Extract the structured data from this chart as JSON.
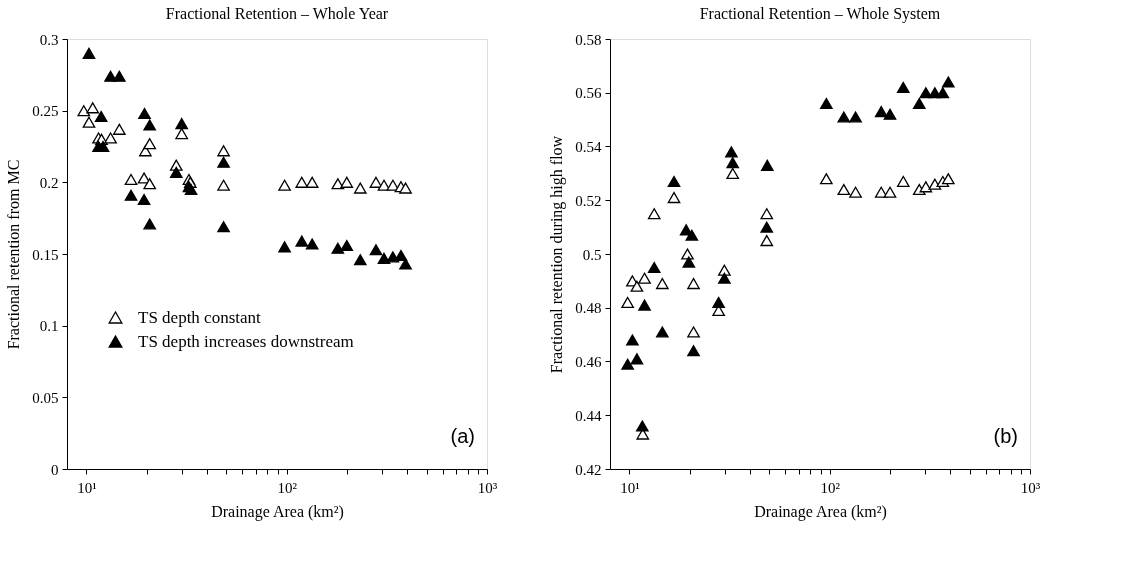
{
  "chart_data": [
    {
      "type": "scatter",
      "title": "Fractional Retention – Whole Year",
      "xlabel": "Drainage Area (km²)",
      "ylabel": "Fractional retention from MC",
      "log": "x",
      "grid": false,
      "marker": "triangle",
      "legend": "bottom left",
      "annotations": [
        "(a)"
      ],
      "xlim": [
        8,
        1000
      ],
      "ylim": [
        0,
        0.3
      ],
      "xticks": [
        {
          "value": 10,
          "label": "10¹"
        },
        {
          "value": 20,
          "label": null
        },
        {
          "value": 30,
          "label": null
        },
        {
          "value": 40,
          "label": null
        },
        {
          "value": 50,
          "label": null
        },
        {
          "value": 60,
          "label": null
        },
        {
          "value": 70,
          "label": null
        },
        {
          "value": 80,
          "label": null
        },
        {
          "value": 90,
          "label": null
        },
        {
          "value": 100,
          "label": "10²"
        },
        {
          "value": 200,
          "label": null
        },
        {
          "value": 300,
          "label": null
        },
        {
          "value": 400,
          "label": null
        },
        {
          "value": 500,
          "label": null
        },
        {
          "value": 600,
          "label": null
        },
        {
          "value": 700,
          "label": null
        },
        {
          "value": 800,
          "label": null
        },
        {
          "value": 900,
          "label": null
        },
        {
          "value": 1000,
          "label": "10³"
        }
      ],
      "yticks": [
        0,
        0.05,
        0.1,
        0.15,
        0.2,
        0.25,
        0.3
      ],
      "series": [
        {
          "name": "TS depth constant",
          "color": "#ffffff",
          "x": [
            9.7,
            10.75,
            10.3,
            11.5,
            11.9,
            13.2,
            14.6,
            16.7,
            19.4,
            19.7,
            20.7,
            20.7,
            28.1,
            29.9,
            32.5,
            33.0,
            48.4,
            48.4,
            97.6,
            118.9,
            134,
            180,
            199.5,
            233,
            279,
            306,
            339,
            372,
            392
          ],
          "values": [
            0.25,
            0.252,
            0.242,
            0.231,
            0.23,
            0.231,
            0.237,
            0.202,
            0.203,
            0.222,
            0.227,
            0.199,
            0.212,
            0.234,
            0.202,
            0.2,
            0.222,
            0.198,
            0.198,
            0.2,
            0.2,
            0.199,
            0.2,
            0.196,
            0.2,
            0.198,
            0.198,
            0.197,
            0.196
          ]
        },
        {
          "name": "TS depth increases downstream",
          "color": "#000000",
          "x": [
            10.3,
            13.2,
            14.6,
            11.85,
            11.5,
            12.1,
            16.7,
            19.5,
            20.7,
            19.4,
            20.7,
            29.9,
            28.1,
            32.5,
            33.3,
            48.4,
            48.4,
            97.6,
            118.9,
            134,
            180,
            199.5,
            233,
            279,
            306,
            339,
            372,
            392
          ],
          "values": [
            0.29,
            0.274,
            0.274,
            0.246,
            0.225,
            0.225,
            0.191,
            0.248,
            0.24,
            0.188,
            0.171,
            0.241,
            0.207,
            0.197,
            0.195,
            0.214,
            0.169,
            0.155,
            0.159,
            0.157,
            0.154,
            0.156,
            0.146,
            0.153,
            0.147,
            0.148,
            0.149,
            0.143
          ]
        }
      ]
    },
    {
      "type": "scatter",
      "title": "Fractional Retention – Whole System",
      "xlabel": "Drainage Area (km²)",
      "ylabel": "Fractional retention during high flow",
      "log": "x",
      "grid": false,
      "marker": "triangle",
      "annotations": [
        "(b)"
      ],
      "xlim": [
        8,
        1000
      ],
      "ylim": [
        0.42,
        0.58
      ],
      "xticks": [
        {
          "value": 10,
          "label": "10¹"
        },
        {
          "value": 20,
          "label": null
        },
        {
          "value": 30,
          "label": null
        },
        {
          "value": 40,
          "label": null
        },
        {
          "value": 50,
          "label": null
        },
        {
          "value": 60,
          "label": null
        },
        {
          "value": 70,
          "label": null
        },
        {
          "value": 80,
          "label": null
        },
        {
          "value": 90,
          "label": null
        },
        {
          "value": 100,
          "label": "10²"
        },
        {
          "value": 200,
          "label": null
        },
        {
          "value": 300,
          "label": null
        },
        {
          "value": 400,
          "label": null
        },
        {
          "value": 500,
          "label": null
        },
        {
          "value": 600,
          "label": null
        },
        {
          "value": 700,
          "label": null
        },
        {
          "value": 800,
          "label": null
        },
        {
          "value": 900,
          "label": null
        },
        {
          "value": 1000,
          "label": "10³"
        }
      ],
      "yticks": [
        0.42,
        0.44,
        0.46,
        0.48,
        0.5,
        0.52,
        0.54,
        0.56,
        0.58
      ],
      "series": [
        {
          "color": "#ffffff",
          "x": [
            9.8,
            10.35,
            10.9,
            11.9,
            13.3,
            14.6,
            16.7,
            19.5,
            20.9,
            20.9,
            27.9,
            29.8,
            32.8,
            48.5,
            48.5,
            11.66,
            96.2,
            117.6,
            134.6,
            180.8,
            200,
            233,
            280,
            302,
            335,
            367,
            391
          ],
          "values": [
            0.482,
            0.49,
            0.488,
            0.491,
            0.515,
            0.489,
            0.521,
            0.5,
            0.489,
            0.471,
            0.479,
            0.494,
            0.53,
            0.515,
            0.505,
            0.433,
            0.528,
            0.524,
            0.523,
            0.523,
            0.523,
            0.527,
            0.524,
            0.525,
            0.526,
            0.527,
            0.528
          ]
        },
        {
          "color": "#000000",
          "x": [
            9.8,
            10.35,
            10.9,
            11.9,
            13.3,
            14.6,
            16.7,
            19.2,
            20.5,
            19.8,
            20.9,
            27.9,
            29.8,
            32.3,
            32.8,
            48.8,
            48.5,
            11.6,
            96.2,
            117.6,
            134.6,
            180.8,
            200,
            233,
            280,
            302,
            335,
            367,
            391
          ],
          "values": [
            0.459,
            0.468,
            0.461,
            0.481,
            0.495,
            0.471,
            0.527,
            0.509,
            0.507,
            0.497,
            0.464,
            0.482,
            0.491,
            0.538,
            0.534,
            0.533,
            0.51,
            0.436,
            0.556,
            0.551,
            0.551,
            0.553,
            0.552,
            0.562,
            0.556,
            0.56,
            0.56,
            0.56,
            0.564
          ]
        }
      ]
    }
  ]
}
